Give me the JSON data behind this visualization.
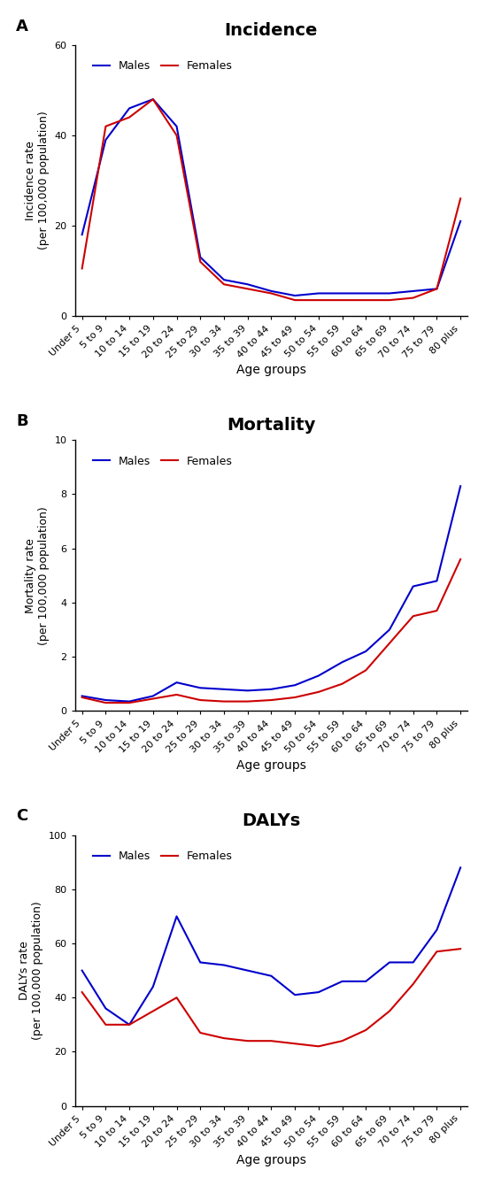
{
  "age_groups": [
    "Under 5",
    "5 to 9",
    "10 to 14",
    "15 to 19",
    "20 to 24",
    "25 to 29",
    "30 to 34",
    "35 to 39",
    "40 to 44",
    "45 to 49",
    "50 to 54",
    "55 to 59",
    "60 to 64",
    "65 to 69",
    "70 to 74",
    "75 to 79",
    "80 plus"
  ],
  "incidence_males": [
    18,
    39,
    46,
    48,
    42,
    13,
    8,
    7,
    5.5,
    4.5,
    5,
    5,
    5,
    5,
    5.5,
    6,
    21
  ],
  "incidence_females": [
    10.5,
    42,
    44,
    48,
    40,
    12,
    7,
    6,
    5,
    3.5,
    3.5,
    3.5,
    3.5,
    3.5,
    4,
    6,
    26
  ],
  "incidence_ylim": [
    0,
    60
  ],
  "incidence_yticks": [
    0,
    20,
    40,
    60
  ],
  "incidence_title": "Incidence",
  "incidence_ylabel": "Incidence rate\n(per 100,000 population)",
  "mortality_males": [
    0.55,
    0.4,
    0.35,
    0.55,
    1.05,
    0.85,
    0.8,
    0.75,
    0.8,
    0.95,
    1.3,
    1.8,
    2.2,
    3.0,
    4.6,
    4.8,
    8.3
  ],
  "mortality_females": [
    0.5,
    0.3,
    0.3,
    0.45,
    0.6,
    0.4,
    0.35,
    0.35,
    0.4,
    0.5,
    0.7,
    1.0,
    1.5,
    2.5,
    3.5,
    3.7,
    5.6
  ],
  "mortality_ylim": [
    0,
    10
  ],
  "mortality_yticks": [
    0,
    2,
    4,
    6,
    8,
    10
  ],
  "mortality_title": "Mortality",
  "mortality_ylabel": "Mortality rate\n(per 100,000 population)",
  "dalys_males": [
    50,
    36,
    30,
    44,
    70,
    53,
    52,
    50,
    48,
    41,
    42,
    46,
    46,
    53,
    53,
    65,
    88
  ],
  "dalys_females": [
    42,
    30,
    30,
    35,
    40,
    27,
    25,
    24,
    24,
    23,
    22,
    24,
    28,
    35,
    45,
    57,
    58
  ],
  "dalys_ylim": [
    0,
    100
  ],
  "dalys_yticks": [
    0,
    20,
    40,
    60,
    80,
    100
  ],
  "dalys_title": "DALYs",
  "dalys_ylabel": "DALYs rate\n(per 100,000 population)",
  "male_color": "#0000CC",
  "female_color": "#CC0000",
  "xlabel": "Age groups",
  "panel_labels": [
    "A",
    "B",
    "C"
  ],
  "legend_males": "Males",
  "legend_females": "Females"
}
